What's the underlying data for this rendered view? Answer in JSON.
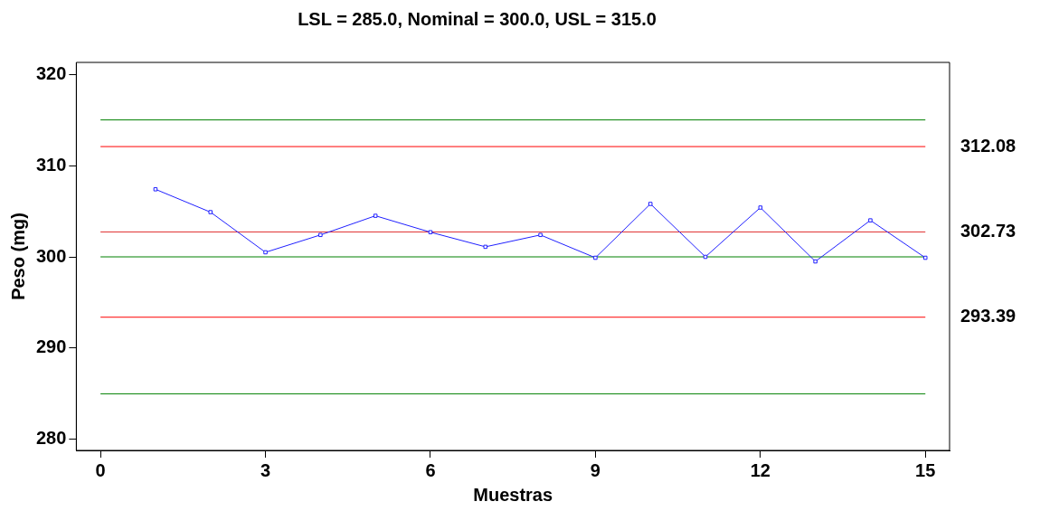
{
  "chart_data": {
    "type": "line",
    "title": "LSL = 285.0, Nominal = 300.0, USL = 315.0",
    "xlabel": "Muestras",
    "ylabel": "Peso (mg)",
    "x": [
      1,
      2,
      3,
      4,
      5,
      6,
      7,
      8,
      9,
      10,
      11,
      12,
      13,
      14,
      15
    ],
    "series": [
      {
        "color": "#2020ff",
        "values": [
          307.4,
          304.9,
          300.5,
          302.4,
          304.5,
          302.7,
          301.1,
          302.4,
          299.9,
          305.8,
          300.0,
          305.4,
          299.5,
          304.0,
          299.9
        ]
      }
    ],
    "xlim": [
      -0.44,
      15.44
    ],
    "xticks": [
      0,
      3,
      6,
      9,
      12,
      15
    ],
    "ylim": [
      278.8,
      321.3
    ],
    "yticks": [
      280,
      290,
      300,
      310,
      320
    ],
    "ref_lines": [
      {
        "axis": "y",
        "value": 315,
        "color": "#008000"
      },
      {
        "axis": "y",
        "value": 312.08,
        "label": "312.08",
        "color": "#ff0000"
      },
      {
        "axis": "y",
        "value": 302.73,
        "label": "302.73",
        "color": "#e03030"
      },
      {
        "axis": "y",
        "value": 300,
        "color": "#008000"
      },
      {
        "axis": "y",
        "value": 293.39,
        "label": "293.39",
        "color": "#ff0000"
      },
      {
        "axis": "y",
        "value": 285,
        "color": "#008000"
      }
    ],
    "marker": "square",
    "line_style": "solid",
    "grid": false,
    "legend": false
  }
}
